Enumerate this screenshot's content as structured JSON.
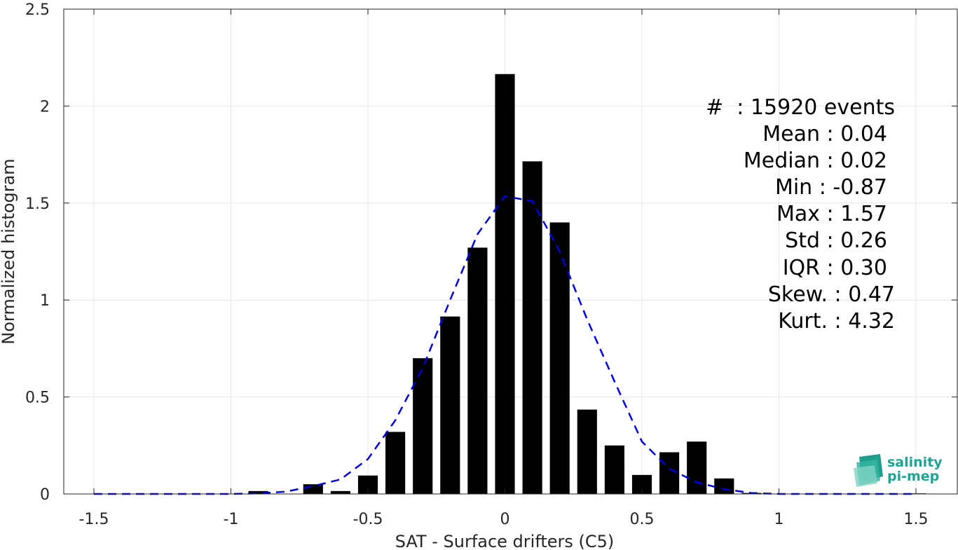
{
  "chart_data": {
    "type": "bar",
    "xlabel": "SAT - Surface drifters (C5)",
    "ylabel": "Normalized histogram",
    "xlim": [
      -1.5,
      1.5
    ],
    "ylim": [
      0,
      2.5
    ],
    "xticks": [
      "-1.5",
      "-1",
      "-0.5",
      "0",
      "0.5",
      "1",
      "1.5"
    ],
    "yticks": [
      "0",
      "0.5",
      "1",
      "1.5",
      "2",
      "2.5"
    ],
    "grid": true,
    "bar_color": "#000000",
    "bin_width": 0.1,
    "bins": [
      {
        "x": -0.9,
        "y": 0.015
      },
      {
        "x": -0.7,
        "y": 0.05
      },
      {
        "x": -0.6,
        "y": 0.015
      },
      {
        "x": -0.5,
        "y": 0.095
      },
      {
        "x": -0.4,
        "y": 0.32
      },
      {
        "x": -0.3,
        "y": 0.7
      },
      {
        "x": -0.2,
        "y": 0.915
      },
      {
        "x": -0.1,
        "y": 1.27
      },
      {
        "x": 0.0,
        "y": 2.165
      },
      {
        "x": 0.1,
        "y": 1.715
      },
      {
        "x": 0.2,
        "y": 1.4
      },
      {
        "x": 0.3,
        "y": 0.435
      },
      {
        "x": 0.4,
        "y": 0.25
      },
      {
        "x": 0.5,
        "y": 0.098
      },
      {
        "x": 0.6,
        "y": 0.215
      },
      {
        "x": 0.7,
        "y": 0.27
      },
      {
        "x": 0.8,
        "y": 0.08
      },
      {
        "x": 0.9,
        "y": 0.005
      },
      {
        "x": 1.5,
        "y": 0.003
      }
    ],
    "fit_curve": {
      "color": "#0000dd",
      "style": "dashed",
      "x": [
        -1.5,
        -1.4,
        -1.3,
        -1.2,
        -1.1,
        -1.0,
        -0.9,
        -0.8,
        -0.7,
        -0.6,
        -0.5,
        -0.4,
        -0.3,
        -0.2,
        -0.1,
        0.0,
        0.1,
        0.2,
        0.3,
        0.4,
        0.5,
        0.6,
        0.7,
        0.8,
        0.9,
        1.0,
        1.1,
        1.2,
        1.3,
        1.4,
        1.5
      ],
      "y": [
        0.0,
        0.0,
        0.0,
        0.0,
        0.0,
        0.0,
        0.003,
        0.012,
        0.04,
        0.075,
        0.18,
        0.38,
        0.65,
        1.0,
        1.34,
        1.535,
        1.51,
        1.25,
        0.9,
        0.58,
        0.27,
        0.13,
        0.06,
        0.025,
        0.005,
        0.0,
        0.0,
        0.0,
        0.0,
        0.0,
        0.0
      ]
    }
  },
  "stats": [
    "#  : 15920 events",
    "Mean : 0.04",
    "Median : 0.02",
    "Min : -0.87",
    "Max : 1.57",
    "Std : 0.26",
    "IQR : 0.30",
    "Skew. : 0.47",
    "Kurt. : 4.32"
  ],
  "logo": {
    "line1": "salinity",
    "line2": "pi-mep",
    "color": "#21a392"
  }
}
